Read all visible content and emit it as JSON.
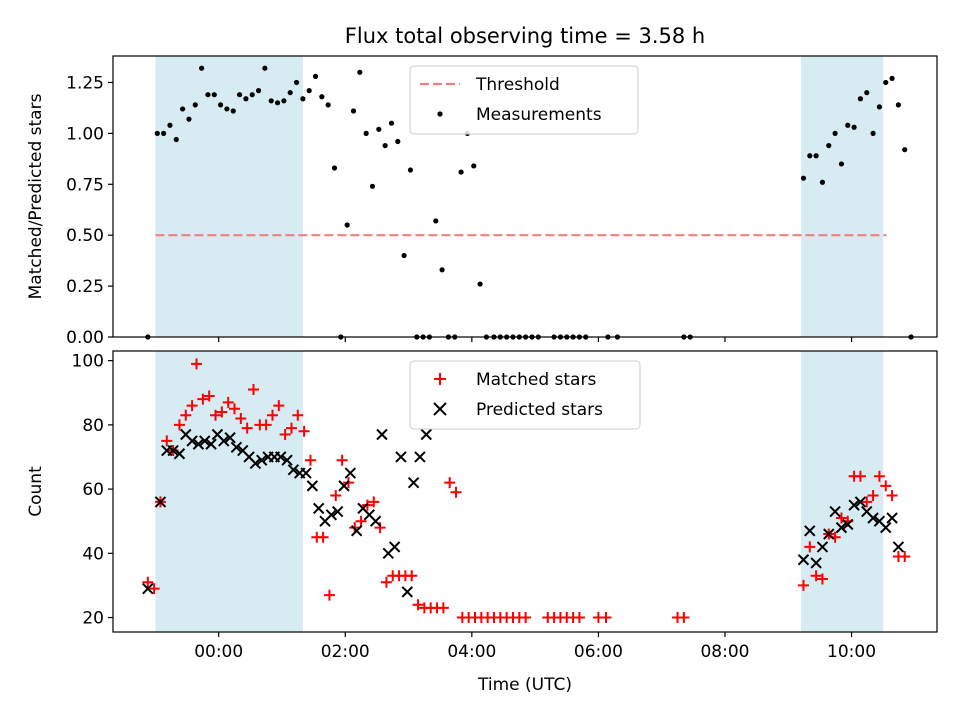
{
  "figure": {
    "title": "Flux total observing time = 3.58 h"
  },
  "chart_data": [
    {
      "type": "scatter",
      "panel": "top",
      "title": "Flux total observing time = 3.58 h",
      "xlabel": "",
      "ylabel": "Matched/Predicted stars",
      "ylim": [
        0,
        1.38
      ],
      "yticks": [
        0,
        0.25,
        0.5,
        0.75,
        1.0,
        1.25
      ],
      "yticklabels": [
        "0.00",
        "0.25",
        "0.50",
        "0.75",
        "1.00",
        "1.25"
      ],
      "x_unit": "hours (UTC), negative = before 00:00",
      "xlim": [
        -1.67,
        11.35
      ],
      "grid": false,
      "legend_position": "top-center",
      "shaded_intervals": [
        [
          -1.0,
          1.33
        ],
        [
          9.2,
          10.5
        ]
      ],
      "shade_color": "#add8e6",
      "threshold": {
        "name": "Threshold",
        "value": 0.5,
        "x_range": [
          -1.0,
          10.55
        ],
        "color": "#f08080",
        "style": "dashed"
      },
      "series": [
        {
          "name": "Measurements",
          "color": "#000000",
          "marker": "dot",
          "points": [
            [
              -1.12,
              0.0
            ],
            [
              -0.97,
              1.0
            ],
            [
              -0.87,
              1.0
            ],
            [
              -0.77,
              1.04
            ],
            [
              -0.67,
              0.97
            ],
            [
              -0.57,
              1.12
            ],
            [
              -0.47,
              1.07
            ],
            [
              -0.37,
              1.14
            ],
            [
              -0.27,
              1.32
            ],
            [
              -0.17,
              1.19
            ],
            [
              -0.07,
              1.19
            ],
            [
              0.03,
              1.14
            ],
            [
              0.13,
              1.12
            ],
            [
              0.23,
              1.11
            ],
            [
              0.33,
              1.19
            ],
            [
              0.43,
              1.17
            ],
            [
              0.53,
              1.19
            ],
            [
              0.63,
              1.21
            ],
            [
              0.73,
              1.32
            ],
            [
              0.83,
              1.16
            ],
            [
              0.93,
              1.15
            ],
            [
              1.03,
              1.16
            ],
            [
              1.13,
              1.2
            ],
            [
              1.23,
              1.25
            ],
            [
              1.33,
              1.17
            ],
            [
              1.43,
              1.21
            ],
            [
              1.53,
              1.28
            ],
            [
              1.63,
              1.18
            ],
            [
              1.73,
              1.14
            ],
            [
              1.83,
              0.83
            ],
            [
              1.93,
              0.0
            ],
            [
              2.03,
              0.55
            ],
            [
              2.13,
              1.11
            ],
            [
              2.23,
              1.3
            ],
            [
              2.33,
              1.0
            ],
            [
              2.43,
              0.74
            ],
            [
              2.53,
              1.02
            ],
            [
              2.63,
              0.94
            ],
            [
              2.73,
              1.05
            ],
            [
              2.83,
              0.96
            ],
            [
              2.93,
              0.4
            ],
            [
              3.03,
              0.82
            ],
            [
              3.13,
              0.0
            ],
            [
              3.23,
              0.0
            ],
            [
              3.33,
              0.0
            ],
            [
              3.43,
              0.57
            ],
            [
              3.53,
              0.33
            ],
            [
              3.63,
              0.0
            ],
            [
              3.73,
              0.0
            ],
            [
              3.83,
              0.81
            ],
            [
              3.93,
              1.0
            ],
            [
              4.03,
              0.84
            ],
            [
              4.13,
              0.26
            ],
            [
              4.23,
              0.0
            ],
            [
              4.35,
              0.0
            ],
            [
              4.45,
              0.0
            ],
            [
              4.55,
              0.0
            ],
            [
              4.65,
              0.0
            ],
            [
              4.75,
              0.0
            ],
            [
              4.85,
              0.0
            ],
            [
              4.95,
              0.0
            ],
            [
              5.05,
              0.0
            ],
            [
              5.3,
              0.0
            ],
            [
              5.4,
              0.0
            ],
            [
              5.5,
              0.0
            ],
            [
              5.6,
              0.0
            ],
            [
              5.7,
              0.0
            ],
            [
              5.8,
              0.0
            ],
            [
              6.15,
              0.0
            ],
            [
              6.3,
              0.0
            ],
            [
              7.35,
              0.0
            ],
            [
              7.45,
              0.0
            ],
            [
              9.24,
              0.78
            ],
            [
              9.34,
              0.89
            ],
            [
              9.44,
              0.89
            ],
            [
              9.54,
              0.76
            ],
            [
              9.64,
              0.94
            ],
            [
              9.74,
              1.0
            ],
            [
              9.84,
              0.85
            ],
            [
              9.94,
              1.04
            ],
            [
              10.04,
              1.03
            ],
            [
              10.14,
              1.17
            ],
            [
              10.24,
              1.2
            ],
            [
              10.34,
              1.0
            ],
            [
              10.44,
              1.13
            ],
            [
              10.54,
              1.25
            ],
            [
              10.64,
              1.27
            ],
            [
              10.74,
              1.14
            ],
            [
              10.84,
              0.92
            ],
            [
              10.94,
              0.0
            ]
          ]
        }
      ]
    },
    {
      "type": "scatter",
      "panel": "bottom",
      "title": "",
      "xlabel": "Time (UTC)",
      "ylabel": "Count",
      "ylim": [
        15.5,
        103
      ],
      "yticks": [
        20,
        40,
        60,
        80,
        100
      ],
      "yticklabels": [
        "20",
        "40",
        "60",
        "80",
        "100"
      ],
      "xticks": [
        0,
        2,
        4,
        6,
        8,
        10
      ],
      "xticklabels": [
        "00:00",
        "02:00",
        "04:00",
        "06:00",
        "08:00",
        "10:00"
      ],
      "x_unit": "hours (UTC), negative = before 00:00",
      "xlim": [
        -1.67,
        11.35
      ],
      "grid": false,
      "legend_position": "top-center",
      "shaded_intervals": [
        [
          -1.0,
          1.33
        ],
        [
          9.2,
          10.5
        ]
      ],
      "shade_color": "#add8e6",
      "series": [
        {
          "name": "Matched stars",
          "color": "#ff0000",
          "marker": "plus",
          "points": [
            [
              -1.12,
              31
            ],
            [
              -1.02,
              29
            ],
            [
              -0.92,
              56
            ],
            [
              -0.82,
              75
            ],
            [
              -0.72,
              72
            ],
            [
              -0.62,
              80
            ],
            [
              -0.52,
              83
            ],
            [
              -0.42,
              86
            ],
            [
              -0.35,
              99
            ],
            [
              -0.25,
              88
            ],
            [
              -0.15,
              89
            ],
            [
              -0.05,
              83
            ],
            [
              0.05,
              84
            ],
            [
              0.15,
              87
            ],
            [
              0.25,
              85
            ],
            [
              0.35,
              82
            ],
            [
              0.45,
              79
            ],
            [
              0.55,
              91
            ],
            [
              0.65,
              80
            ],
            [
              0.75,
              80
            ],
            [
              0.85,
              83
            ],
            [
              0.95,
              86
            ],
            [
              1.05,
              77
            ],
            [
              1.15,
              79
            ],
            [
              1.25,
              83
            ],
            [
              1.35,
              78
            ],
            [
              1.45,
              69
            ],
            [
              1.55,
              45
            ],
            [
              1.65,
              45
            ],
            [
              1.75,
              27
            ],
            [
              1.85,
              58
            ],
            [
              1.95,
              69
            ],
            [
              2.05,
              62
            ],
            [
              2.15,
              48
            ],
            [
              2.25,
              50
            ],
            [
              2.35,
              55
            ],
            [
              2.45,
              56
            ],
            [
              2.55,
              48
            ],
            [
              2.65,
              31
            ],
            [
              2.75,
              33
            ],
            [
              2.85,
              33
            ],
            [
              2.95,
              33
            ],
            [
              3.05,
              33
            ],
            [
              3.15,
              24
            ],
            [
              3.25,
              23
            ],
            [
              3.35,
              23
            ],
            [
              3.45,
              23
            ],
            [
              3.55,
              23
            ],
            [
              3.65,
              62
            ],
            [
              3.75,
              59
            ],
            [
              3.85,
              20
            ],
            [
              3.95,
              20
            ],
            [
              4.05,
              20
            ],
            [
              4.15,
              20
            ],
            [
              4.25,
              20
            ],
            [
              4.35,
              20
            ],
            [
              4.45,
              20
            ],
            [
              4.55,
              20
            ],
            [
              4.65,
              20
            ],
            [
              4.75,
              20
            ],
            [
              4.85,
              20
            ],
            [
              5.2,
              20
            ],
            [
              5.3,
              20
            ],
            [
              5.4,
              20
            ],
            [
              5.5,
              20
            ],
            [
              5.6,
              20
            ],
            [
              5.7,
              20
            ],
            [
              6.0,
              20
            ],
            [
              6.12,
              20
            ],
            [
              7.25,
              20
            ],
            [
              7.35,
              20
            ],
            [
              9.24,
              30
            ],
            [
              9.34,
              42
            ],
            [
              9.44,
              33
            ],
            [
              9.54,
              32
            ],
            [
              9.64,
              46
            ],
            [
              9.74,
              45
            ],
            [
              9.84,
              51
            ],
            [
              9.94,
              50
            ],
            [
              10.04,
              64
            ],
            [
              10.14,
              64
            ],
            [
              10.24,
              56
            ],
            [
              10.34,
              58
            ],
            [
              10.44,
              64
            ],
            [
              10.54,
              61
            ],
            [
              10.64,
              58
            ],
            [
              10.74,
              39
            ],
            [
              10.84,
              39
            ]
          ]
        },
        {
          "name": "Predicted stars",
          "color": "#000000",
          "marker": "x",
          "points": [
            [
              -1.12,
              29
            ],
            [
              -0.92,
              56
            ],
            [
              -0.82,
              72
            ],
            [
              -0.72,
              72
            ],
            [
              -0.62,
              71
            ],
            [
              -0.52,
              77
            ],
            [
              -0.42,
              75
            ],
            [
              -0.32,
              74
            ],
            [
              -0.22,
              75
            ],
            [
              -0.12,
              74
            ],
            [
              -0.02,
              77
            ],
            [
              0.08,
              75
            ],
            [
              0.18,
              76
            ],
            [
              0.28,
              73
            ],
            [
              0.38,
              72
            ],
            [
              0.48,
              70
            ],
            [
              0.58,
              68
            ],
            [
              0.68,
              69
            ],
            [
              0.78,
              70
            ],
            [
              0.88,
              70
            ],
            [
              0.98,
              70
            ],
            [
              1.08,
              69
            ],
            [
              1.18,
              66
            ],
            [
              1.28,
              65
            ],
            [
              1.38,
              65
            ],
            [
              1.48,
              61
            ],
            [
              1.58,
              54
            ],
            [
              1.68,
              50
            ],
            [
              1.78,
              52
            ],
            [
              1.88,
              53
            ],
            [
              1.98,
              61
            ],
            [
              2.08,
              65
            ],
            [
              2.18,
              47
            ],
            [
              2.28,
              54
            ],
            [
              2.38,
              52
            ],
            [
              2.48,
              50
            ],
            [
              2.58,
              77
            ],
            [
              2.68,
              40
            ],
            [
              2.78,
              42
            ],
            [
              2.88,
              70
            ],
            [
              2.98,
              28
            ],
            [
              3.08,
              62
            ],
            [
              3.18,
              70
            ],
            [
              3.28,
              77
            ],
            [
              9.24,
              38
            ],
            [
              9.34,
              47
            ],
            [
              9.44,
              37
            ],
            [
              9.54,
              42
            ],
            [
              9.64,
              46
            ],
            [
              9.74,
              53
            ],
            [
              9.84,
              48
            ],
            [
              9.94,
              49
            ],
            [
              10.04,
              55
            ],
            [
              10.14,
              56
            ],
            [
              10.24,
              53
            ],
            [
              10.34,
              51
            ],
            [
              10.44,
              50
            ],
            [
              10.54,
              48
            ],
            [
              10.64,
              51
            ],
            [
              10.74,
              42
            ]
          ]
        }
      ]
    }
  ]
}
